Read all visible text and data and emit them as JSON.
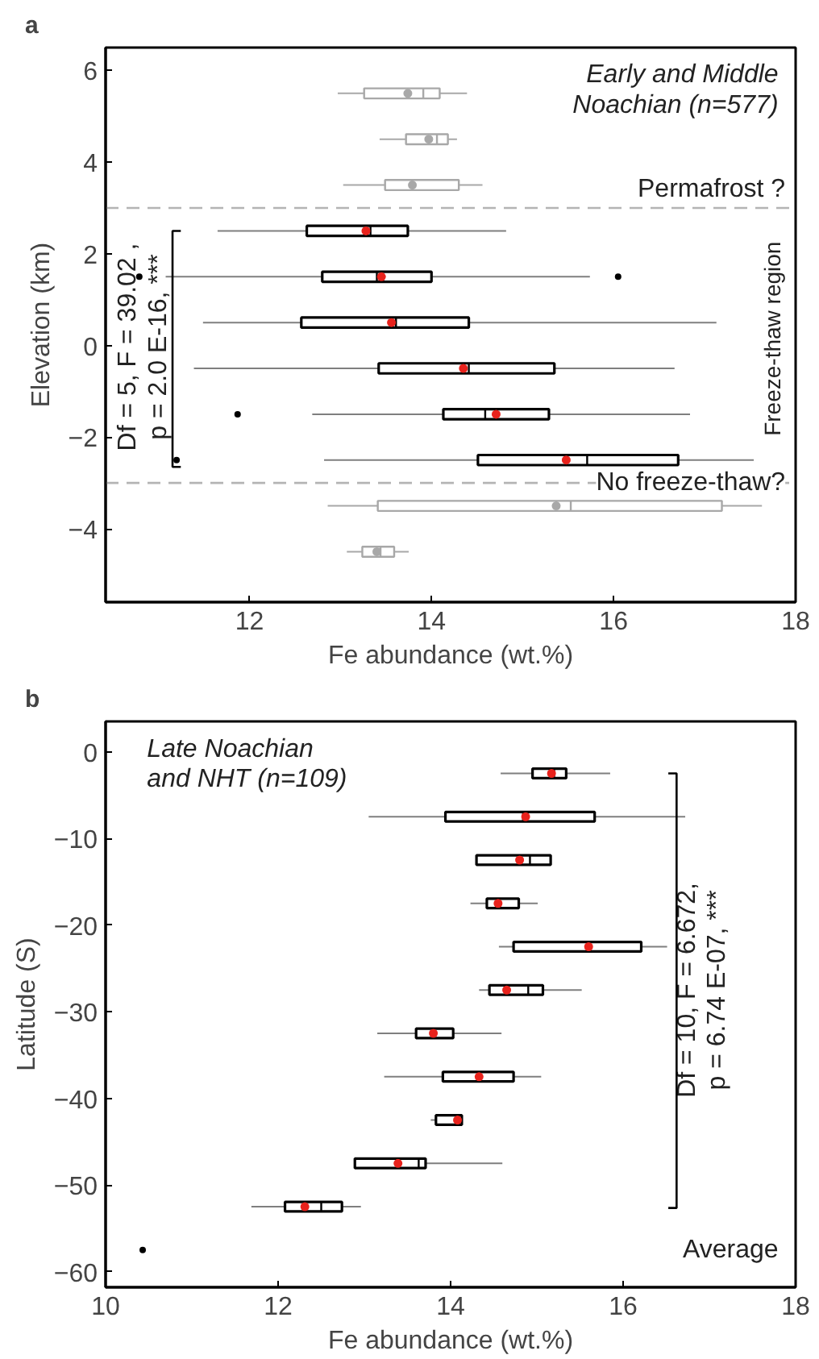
{
  "chart_data": [
    {
      "type": "box",
      "orientation": "horizontal",
      "title": "a",
      "xlabel": "Fe abundance (wt.%)",
      "ylabel": "Elevation (km)",
      "xlim": [
        10.42,
        18
      ],
      "xticks": [
        12,
        14,
        16,
        18
      ],
      "ylim": [
        -5.6,
        6.5
      ],
      "yticks": [
        -4,
        -2,
        0,
        2,
        4,
        6
      ],
      "grid": false,
      "series": [
        {
          "color": "#000000",
          "x": [
            2.5,
            1.5,
            0.5,
            -0.5,
            -1.5,
            -2.5
          ],
          "boxes": [
            {
              "low": 11.65,
              "q1": 12.63,
              "median": 13.33,
              "q3": 13.74,
              "high": 14.82,
              "mean": 13.28
            },
            {
              "low": 11.08,
              "q1": 12.8,
              "median": 13.4,
              "q3": 14.0,
              "high": 15.74,
              "mean": 13.45,
              "outliers": [
                10.79,
                16.05
              ]
            },
            {
              "low": 11.49,
              "q1": 12.57,
              "median": 13.61,
              "q3": 14.41,
              "high": 17.13,
              "mean": 13.56
            },
            {
              "low": 11.39,
              "q1": 13.42,
              "median": 14.41,
              "q3": 15.35,
              "high": 16.67,
              "mean": 14.35
            },
            {
              "low": 12.69,
              "q1": 14.13,
              "median": 14.59,
              "q3": 15.29,
              "high": 16.84,
              "mean": 14.71,
              "outliers": [
                11.87
              ]
            },
            {
              "low": 12.82,
              "q1": 14.51,
              "median": 15.71,
              "q3": 16.71,
              "high": 17.54,
              "mean": 15.48,
              "outliers": [
                11.2
              ]
            }
          ]
        },
        {
          "color": "#a8a8a8",
          "x": [
            5.5,
            4.5,
            3.5,
            -3.5,
            -4.5
          ],
          "boxes": [
            {
              "low": 12.97,
              "q1": 13.26,
              "median": 13.91,
              "q3": 14.09,
              "high": 14.39,
              "mean": 13.74
            },
            {
              "low": 13.43,
              "q1": 13.72,
              "median": 14.06,
              "q3": 14.18,
              "high": 14.28,
              "mean": 13.97
            },
            {
              "low": 13.03,
              "q1": 13.49,
              "median": 13.79,
              "q3": 14.3,
              "high": 14.56,
              "mean": 13.79
            },
            {
              "low": 12.86,
              "q1": 13.41,
              "median": 15.53,
              "q3": 17.19,
              "high": 17.63,
              "mean": 15.37
            },
            {
              "low": 13.07,
              "q1": 13.24,
              "median": 13.44,
              "q3": 13.59,
              "high": 13.75,
              "mean": 13.4
            }
          ]
        }
      ],
      "ref_lines": [
        {
          "axis": "y",
          "value": 3,
          "label": "Permafrost ?",
          "color": "#b4b4b4",
          "line_style": "dashed"
        },
        {
          "axis": "y",
          "value": -3,
          "label": "No freeze-thaw?",
          "color": "#b4b4b4",
          "line_style": "dashed"
        }
      ],
      "annotations": [
        "Early and Middle\nNoachian (n=577)",
        "Freeze-thaw region",
        "Df = 5, F = 39.02 ,\np = 2.0 E-16, ***"
      ]
    },
    {
      "type": "box",
      "orientation": "horizontal",
      "title": "b",
      "xlabel": "Fe abundance (wt.%)",
      "ylabel": "Latitude (S)",
      "xlim": [
        10,
        18
      ],
      "xticks": [
        10,
        12,
        14,
        16,
        18
      ],
      "ylim": [
        -61.8,
        3.5
      ],
      "yticks": [
        -60,
        -50,
        -40,
        -30,
        -20,
        -10,
        0
      ],
      "grid": false,
      "series": [
        {
          "color": "#000000",
          "x": [
            -2.5,
            -7.5,
            -12.5,
            -17.5,
            -22.5,
            -27.5,
            -32.5,
            -37.5,
            -42.5,
            -47.5,
            -52.5
          ],
          "boxes": [
            {
              "low": 14.58,
              "q1": 14.95,
              "median": 15.2,
              "q3": 15.34,
              "high": 15.85,
              "mean": 15.17
            },
            {
              "low": 13.05,
              "q1": 13.94,
              "median": 14.84,
              "q3": 15.67,
              "high": 16.72,
              "mean": 14.87
            },
            {
              "low": 14.3,
              "q1": 14.3,
              "median": 14.92,
              "q3": 15.16,
              "high": 15.16,
              "mean": 14.8
            },
            {
              "low": 14.23,
              "q1": 14.42,
              "median": 14.55,
              "q3": 14.79,
              "high": 15.01,
              "mean": 14.55
            },
            {
              "low": 14.56,
              "q1": 14.73,
              "median": 15.6,
              "q3": 16.21,
              "high": 16.51,
              "mean": 15.6
            },
            {
              "low": 14.33,
              "q1": 14.45,
              "median": 14.9,
              "q3": 15.07,
              "high": 15.52,
              "mean": 14.65
            },
            {
              "low": 13.15,
              "q1": 13.6,
              "median": 13.8,
              "q3": 14.03,
              "high": 14.59,
              "mean": 13.8
            },
            {
              "low": 13.23,
              "q1": 13.91,
              "median": 14.33,
              "q3": 14.73,
              "high": 15.05,
              "mean": 14.33
            },
            {
              "low": 13.77,
              "q1": 13.83,
              "median": 14.08,
              "q3": 14.13,
              "high": 14.14,
              "mean": 14.08
            },
            {
              "low": 12.89,
              "q1": 12.89,
              "median": 13.63,
              "q3": 13.71,
              "high": 14.6,
              "mean": 13.39
            },
            {
              "low": 11.69,
              "q1": 12.08,
              "median": 12.5,
              "q3": 12.74,
              "high": 12.96,
              "mean": 12.31
            }
          ]
        },
        {
          "type": "scatter",
          "color": "#000000",
          "x": [
            -57.5
          ],
          "values": [
            10.43
          ]
        }
      ],
      "annotations": [
        "Late Noachian\nand NHT (n=109)",
        "Df = 10, F = 6.672,\np = 6.74 E-07, ***",
        "Average"
      ]
    }
  ]
}
